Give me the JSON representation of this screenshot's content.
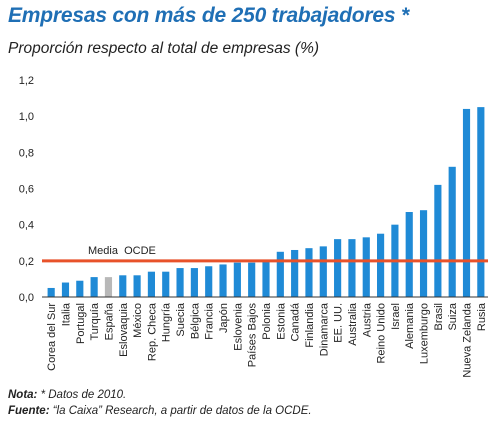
{
  "title": "Empresas con más de 250 trabajadores *",
  "subtitle": "Proporción respecto al total de empresas (%)",
  "note": {
    "label": "Nota:",
    "text": " * Datos de 2010."
  },
  "source": {
    "label": "Fuente:",
    "text": " “la Caixa” Research, a partir de datos de la OCDE."
  },
  "colors": {
    "bar": "#1f8ad6",
    "highlight": "#b8b8b8",
    "mean_line": "#e8522a",
    "title": "#1f6fb5"
  },
  "chart_data": {
    "type": "bar",
    "title": "",
    "xlabel": "",
    "ylabel": "",
    "ylim": [
      0,
      1.2
    ],
    "yticks": [
      0,
      0.2,
      0.4,
      0.6,
      0.8,
      1.0,
      1.2
    ],
    "ytick_labels": [
      "0,0",
      "0,2",
      "0,4",
      "0,6",
      "0,8",
      "1,0",
      "1,2"
    ],
    "grid": false,
    "highlight_category": "España",
    "categories": [
      "Corea del Sur",
      "Italia",
      "Portugal",
      "Turquía",
      "España",
      "Eslovaquia",
      "México",
      "Rep. Checa",
      "Hungría",
      "Suecia",
      "Bélgica",
      "Francia",
      "Japón",
      "Eslovenia",
      "Países Bajos",
      "Polonia",
      "Estonia",
      "Canadá",
      "Finlandia",
      "Dinamarca",
      "EE. UU.",
      "Australia",
      "Austria",
      "Reino Unido",
      "Israel",
      "Alemania",
      "Luxemburgo",
      "Brasil",
      "Suiza",
      "Nueva Zelanda",
      "Rusia"
    ],
    "values": [
      0.05,
      0.08,
      0.09,
      0.11,
      0.11,
      0.12,
      0.12,
      0.14,
      0.14,
      0.16,
      0.16,
      0.17,
      0.18,
      0.19,
      0.19,
      0.2,
      0.25,
      0.26,
      0.27,
      0.28,
      0.32,
      0.32,
      0.33,
      0.35,
      0.4,
      0.47,
      0.48,
      0.62,
      0.72,
      1.04,
      1.05
    ],
    "reference_line": {
      "label": "Media  OCDE",
      "value": 0.2
    }
  }
}
